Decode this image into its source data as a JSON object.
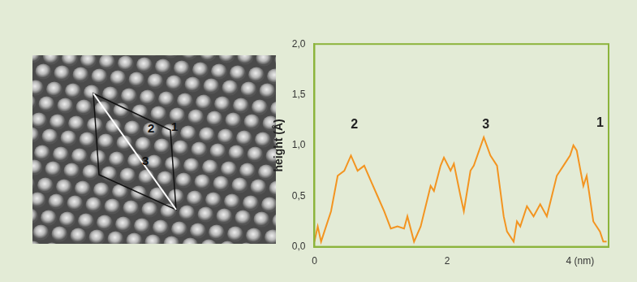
{
  "image": {
    "labels": [
      "2",
      "1",
      "3"
    ]
  },
  "chart_data": {
    "type": "line",
    "y_label": "height (Å)",
    "x": [
      0,
      0.05,
      0.1,
      0.15,
      0.25,
      0.35,
      0.45,
      0.55,
      0.65,
      0.75,
      0.85,
      0.95,
      1.05,
      1.15,
      1.25,
      1.35,
      1.4,
      1.5,
      1.6,
      1.75,
      1.8,
      1.9,
      1.95,
      2.05,
      2.1,
      2.2,
      2.25,
      2.35,
      2.4,
      2.55,
      2.65,
      2.75,
      2.85,
      2.9,
      3.0,
      3.05,
      3.1,
      3.2,
      3.3,
      3.4,
      3.5,
      3.65,
      3.75,
      3.85,
      3.9,
      3.95,
      4.05,
      4.1,
      4.2,
      4.3,
      4.35,
      4.4
    ],
    "values": [
      0.05,
      0.2,
      0.05,
      0.15,
      0.35,
      0.7,
      0.75,
      0.9,
      0.75,
      0.8,
      0.65,
      0.5,
      0.35,
      0.18,
      0.2,
      0.18,
      0.3,
      0.05,
      0.2,
      0.6,
      0.55,
      0.8,
      0.88,
      0.75,
      0.82,
      0.5,
      0.35,
      0.75,
      0.8,
      1.08,
      0.9,
      0.8,
      0.3,
      0.15,
      0.05,
      0.25,
      0.2,
      0.4,
      0.3,
      0.42,
      0.3,
      0.7,
      0.8,
      0.9,
      1.0,
      0.95,
      0.6,
      0.7,
      0.25,
      0.15,
      0.05,
      0.05
    ],
    "color": "#f39420",
    "xlim": [
      0,
      4.43
    ],
    "xticks": [
      0,
      2,
      {
        "value": 4,
        "label": "4 (nm)"
      }
    ],
    "ylim": [
      0,
      2
    ],
    "yticks": [
      {
        "value": 0,
        "label": "0,0"
      },
      {
        "value": 0.5,
        "label": "0,5"
      },
      {
        "value": 1,
        "label": "1,0"
      },
      {
        "value": 1.5,
        "label": "1,5"
      },
      {
        "value": 2,
        "label": "2,0"
      }
    ],
    "grid": false,
    "annotations": [
      {
        "text": "2",
        "x": 0.6,
        "y": 1.2
      },
      {
        "text": "3",
        "x": 2.58,
        "y": 1.2
      },
      {
        "text": "1",
        "x": 4.3,
        "y": 1.22
      }
    ]
  }
}
